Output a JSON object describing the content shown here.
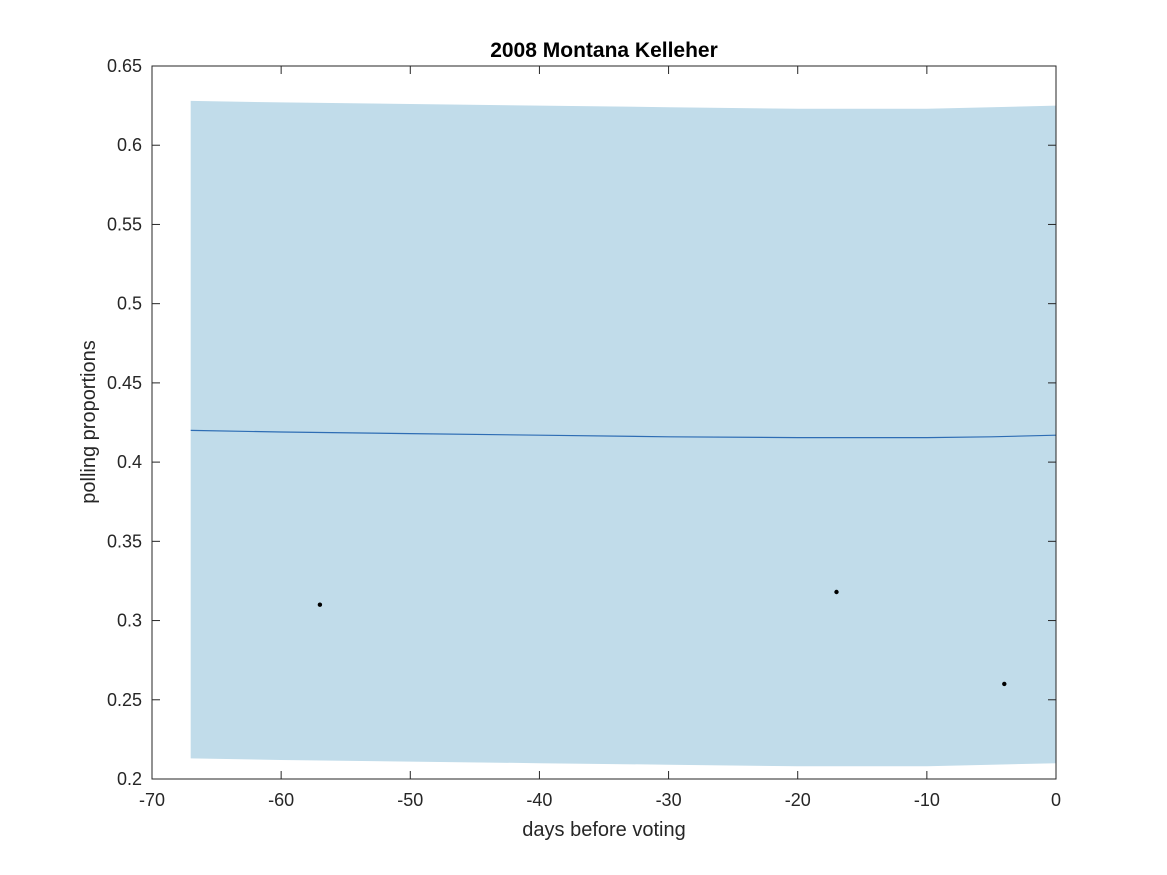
{
  "chart_data": {
    "type": "line",
    "title": "2008 Montana Kelleher",
    "xlabel": "days before voting",
    "ylabel": "polling proportions",
    "xlim": [
      -70,
      0
    ],
    "ylim": [
      0.2,
      0.65
    ],
    "xticks": [
      -70,
      -60,
      -50,
      -40,
      -30,
      -20,
      -10,
      0
    ],
    "yticks": [
      0.2,
      0.25,
      0.3,
      0.35,
      0.4,
      0.45,
      0.5,
      0.55,
      0.6,
      0.65
    ],
    "xtick_labels": [
      "-70",
      "-60",
      "-50",
      "-40",
      "-30",
      "-20",
      "-10",
      "0"
    ],
    "ytick_labels": [
      "0.2",
      "0.25",
      "0.3",
      "0.35",
      "0.4",
      "0.45",
      "0.5",
      "0.55",
      "0.6",
      "0.65"
    ],
    "grid": false,
    "band": {
      "x": [
        -67,
        -60,
        -50,
        -40,
        -30,
        -20,
        -15,
        -10,
        -5,
        0
      ],
      "upper": [
        0.628,
        0.627,
        0.626,
        0.625,
        0.624,
        0.623,
        0.623,
        0.623,
        0.624,
        0.625
      ],
      "lower": [
        0.213,
        0.212,
        0.211,
        0.21,
        0.209,
        0.208,
        0.208,
        0.208,
        0.209,
        0.21
      ],
      "color": "#c1dcea"
    },
    "series": [
      {
        "x": [
          -67,
          -60,
          -50,
          -40,
          -30,
          -20,
          -15,
          -10,
          -5,
          0
        ],
        "values": [
          0.42,
          0.419,
          0.418,
          0.417,
          0.416,
          0.4155,
          0.4155,
          0.4155,
          0.416,
          0.417
        ],
        "color": "#2e6db4"
      }
    ],
    "points": {
      "x": [
        -57,
        -17,
        -4
      ],
      "y": [
        0.31,
        0.318,
        0.26
      ],
      "color": "#000000"
    }
  }
}
